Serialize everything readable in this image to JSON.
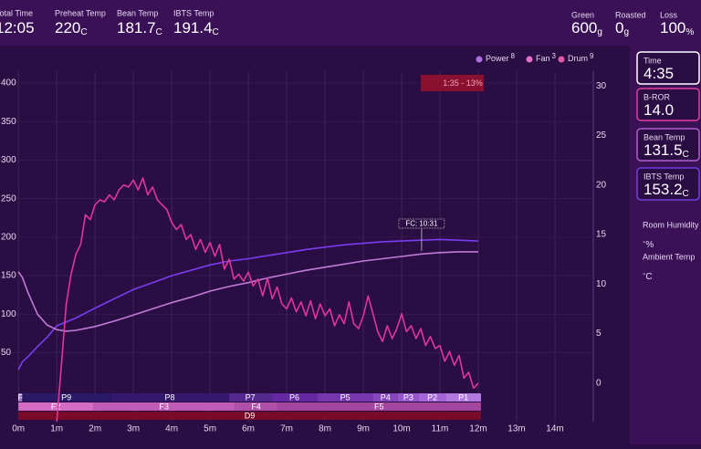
{
  "header": {
    "stats": [
      {
        "label": "Total Time",
        "value": "12:05"
      },
      {
        "label": "Preheat Temp",
        "value": "220",
        "unit": "C"
      },
      {
        "label": "Bean Temp",
        "value": "181.7",
        "unit": "C"
      },
      {
        "label": "IBTS Temp",
        "value": "191.4",
        "unit": "C"
      }
    ],
    "weights": [
      {
        "label": "Green",
        "value": "600",
        "unit": "g"
      },
      {
        "label": "Roasted",
        "value": "0",
        "unit": "g"
      },
      {
        "label": "Loss",
        "value": "100",
        "unit": "%"
      }
    ]
  },
  "sidebar": {
    "cards": [
      {
        "label": "Time",
        "value": "4:35",
        "color": "#ffffff"
      },
      {
        "label": "B-ROR",
        "value": "14.0",
        "color": "#e040a0"
      },
      {
        "label": "Bean Temp",
        "value": "131.5",
        "unit": "C",
        "color": "#b060d0"
      },
      {
        "label": "IBTS Temp",
        "value": "153.2",
        "unit": "C",
        "color": "#7040e0"
      }
    ],
    "ambient": [
      {
        "label": "Room Humidity",
        "value": "-",
        "unit": "%"
      },
      {
        "label": "Ambient Temp",
        "value": "-",
        "unit": "C"
      }
    ]
  },
  "chart_data": {
    "type": "line",
    "controls": [
      {
        "name": "Power",
        "level": 8,
        "color": "#b070e0"
      },
      {
        "name": "Fan",
        "level": 3,
        "color": "#e070c8"
      },
      {
        "name": "Drum",
        "level": 9,
        "color": "#e05aa8"
      }
    ],
    "xlim": [
      -0.48,
      15
    ],
    "xticks": [
      {
        "value": 0,
        "label": "0m"
      },
      {
        "value": 1,
        "label": "1m"
      },
      {
        "value": 2,
        "label": "2m"
      },
      {
        "value": 3,
        "label": "3m"
      },
      {
        "value": 4,
        "label": "4m"
      },
      {
        "value": 5,
        "label": "5m"
      },
      {
        "value": 6,
        "label": "6m"
      },
      {
        "value": 7,
        "label": "7m"
      },
      {
        "value": 8,
        "label": "8m"
      },
      {
        "value": 9,
        "label": "9m"
      },
      {
        "value": 10,
        "label": "10m"
      },
      {
        "value": 11,
        "label": "11m"
      },
      {
        "value": 12,
        "label": "12m"
      },
      {
        "value": 13,
        "label": "13m"
      },
      {
        "value": 14,
        "label": "14m"
      }
    ],
    "ylim": [
      -37,
      413
    ],
    "yticks": [
      50,
      100,
      150,
      200,
      250,
      300,
      350,
      400
    ],
    "y2lim": [
      -3.7,
      31.3
    ],
    "y2ticks": [
      0,
      5,
      10,
      15,
      20,
      25,
      30
    ],
    "grid": true,
    "series": [
      {
        "color": "#7a3cf0",
        "x": [
          0,
          0.1,
          0.25,
          0.5,
          0.75,
          1,
          1.5,
          2,
          2.5,
          3,
          3.5,
          4,
          4.5,
          5,
          5.5,
          6,
          6.5,
          7,
          7.5,
          8,
          8.5,
          9,
          9.5,
          10,
          10.5,
          11,
          11.5,
          12
        ],
        "values": [
          28,
          38,
          45,
          58,
          70,
          85,
          95,
          108,
          120,
          132,
          141,
          150,
          157,
          164,
          169,
          172,
          176,
          180,
          184,
          187,
          190,
          192,
          194,
          195,
          196,
          197,
          196,
          195
        ]
      },
      {
        "color": "#c27ad8",
        "x": [
          0,
          0.1,
          0.25,
          0.5,
          0.75,
          1,
          1.25,
          1.5,
          2,
          2.5,
          3,
          3.5,
          4,
          4.5,
          5,
          5.5,
          6,
          6.5,
          7,
          7.5,
          8,
          8.5,
          9,
          9.5,
          10,
          10.5,
          11,
          11.5,
          12
        ],
        "values": [
          155,
          148,
          128,
          100,
          86,
          80,
          78,
          79,
          84,
          91,
          99,
          107,
          115,
          122,
          130,
          136,
          141,
          147,
          152,
          157,
          161,
          165,
          169,
          172,
          175,
          178,
          180,
          181,
          181
        ]
      },
      {
        "color": "#e0359a",
        "axis": "y2",
        "x": [
          1,
          1.125,
          1.25,
          1.375,
          1.5,
          1.625,
          1.75,
          1.875,
          2,
          2.125,
          2.25,
          2.375,
          2.5,
          2.625,
          2.75,
          2.875,
          3,
          3.125,
          3.25,
          3.375,
          3.5,
          3.625,
          3.75,
          3.875,
          4,
          4.125,
          4.25,
          4.375,
          4.5,
          4.625,
          4.75,
          4.875,
          5,
          5.125,
          5.25,
          5.375,
          5.5,
          5.625,
          5.75,
          5.875,
          6,
          6.125,
          6.25,
          6.375,
          6.5,
          6.625,
          6.75,
          6.875,
          7,
          7.125,
          7.25,
          7.375,
          7.5,
          7.625,
          7.75,
          7.875,
          8,
          8.125,
          8.25,
          8.375,
          8.5,
          8.625,
          8.75,
          8.875,
          9,
          9.125,
          9.25,
          9.375,
          9.5,
          9.625,
          9.75,
          9.875,
          10,
          10.125,
          10.25,
          10.375,
          10.5,
          10.625,
          10.75,
          10.875,
          11,
          11.125,
          11.25,
          11.375,
          11.5,
          11.625,
          11.75,
          11.875,
          12
        ],
        "values": [
          -4,
          2,
          8,
          11,
          13,
          14,
          17,
          16.5,
          18,
          18.5,
          18.3,
          19,
          18.5,
          19.5,
          20,
          19.8,
          20.5,
          19.5,
          20.7,
          19,
          19.8,
          18.5,
          18,
          17.5,
          16.2,
          15.5,
          16,
          14.5,
          15,
          13.5,
          14.5,
          13.2,
          14.2,
          12.8,
          14,
          11.5,
          12.5,
          10.5,
          11,
          10.3,
          11.2,
          9.8,
          10.5,
          8.8,
          10.6,
          8.5,
          9.7,
          8,
          7.5,
          8.6,
          7.2,
          8.2,
          6.8,
          8.3,
          6.5,
          8,
          6.8,
          7.5,
          5.8,
          6.9,
          6,
          8.2,
          6,
          5.5,
          6.8,
          8.8,
          7,
          5.2,
          4.2,
          5.8,
          4.5,
          5.5,
          7,
          5.2,
          5.8,
          4.5,
          5.5,
          3.8,
          4.7,
          3.5,
          3.8,
          2.2,
          3.2,
          1.8,
          2.8,
          0.5,
          1.1,
          -0.5,
          0
        ]
      }
    ],
    "annotations": [
      {
        "text": "FC: 10:31",
        "x": 10.52
      },
      {
        "text": "1:35 - 13%"
      }
    ],
    "phase_rows": [
      [
        {
          "label": "F",
          "start": 0,
          "end": 0.1,
          "color": "#9a70c8"
        },
        {
          "label": "P9",
          "start": 0.1,
          "end": 2.4,
          "color": "#2a1a66"
        },
        {
          "label": "P8",
          "start": 2.4,
          "end": 5.5,
          "color": "#34186c"
        },
        {
          "label": "P7",
          "start": 5.5,
          "end": 6.6,
          "color": "#55288e"
        },
        {
          "label": "P6",
          "start": 6.6,
          "end": 7.8,
          "color": "#6428a0"
        },
        {
          "label": "P5",
          "start": 7.8,
          "end": 9.25,
          "color": "#7636ae"
        },
        {
          "label": "P4",
          "start": 9.25,
          "end": 9.9,
          "color": "#8646bc"
        },
        {
          "label": "P3",
          "start": 9.9,
          "end": 10.45,
          "color": "#9656cc"
        },
        {
          "label": "P2",
          "start": 10.45,
          "end": 11.15,
          "color": "#a466d6"
        },
        {
          "label": "P1",
          "start": 11.15,
          "end": 12.07,
          "color": "#b27ade"
        }
      ],
      [
        {
          "label": "F2",
          "start": 0,
          "end": 1.95,
          "color": "#d46cc4"
        },
        {
          "label": "F3",
          "start": 1.95,
          "end": 5.65,
          "color": "#c05cb6"
        },
        {
          "label": "F4",
          "start": 5.65,
          "end": 6.75,
          "color": "#b050a8"
        },
        {
          "label": "F5",
          "start": 6.75,
          "end": 12.07,
          "color": "#a4469e"
        }
      ],
      [
        {
          "label": "D9",
          "start": 0,
          "end": 12.07,
          "color": "#780a2a"
        }
      ]
    ]
  }
}
